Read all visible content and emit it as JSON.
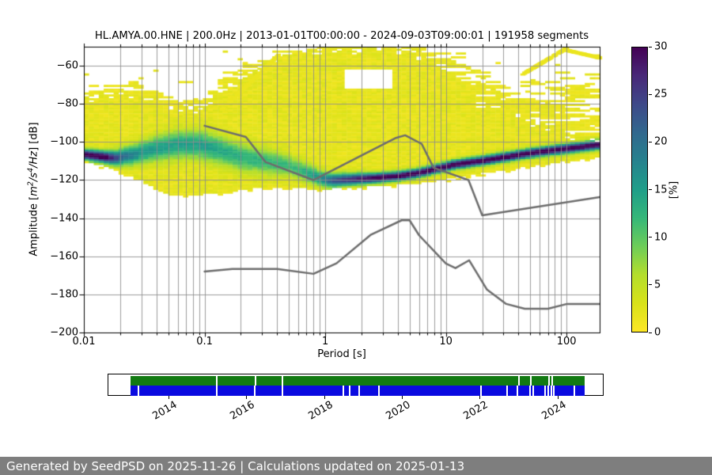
{
  "title": "HL.AMYA.00.HNE | 200.0Hz | 2013-01-01T00:00:00 - 2024-09-03T09:00:01 | 191958 segments",
  "footer": {
    "text": "Generated by SeedPSD on 2025-11-26 | Calculations updated on 2025-01-13",
    "bg": "#7e7e7e",
    "fg": "#ffffff"
  },
  "main_plot": {
    "xlabel": "Period [s]",
    "ylabel": {
      "prefix": "Amplitude [",
      "math_m": "m",
      "exp_m": "2",
      "math_s": "/s",
      "exp_s": "4",
      "math_hz": "/Hz",
      "suffix": "] [dB]"
    },
    "x_ticks": [
      {
        "p": 0.01,
        "label": "0.01"
      },
      {
        "p": 0.1,
        "label": "0.1"
      },
      {
        "p": 1,
        "label": "1"
      },
      {
        "p": 10,
        "label": "10"
      },
      {
        "p": 100,
        "label": "100"
      }
    ],
    "y_ticks": [
      {
        "db": -60,
        "label": "−60"
      },
      {
        "db": -80,
        "label": "−80"
      },
      {
        "db": -100,
        "label": "−100"
      },
      {
        "db": -120,
        "label": "−120"
      },
      {
        "db": -140,
        "label": "−140"
      },
      {
        "db": -160,
        "label": "−160"
      },
      {
        "db": -180,
        "label": "−180"
      },
      {
        "db": -200,
        "label": "−200"
      }
    ],
    "grid_color": "rgba(140,140,140,0.85)"
  },
  "colorbar": {
    "label": "[%]",
    "min": 0,
    "max": 30,
    "ticks": [
      {
        "v": 0,
        "label": "0"
      },
      {
        "v": 5,
        "label": "5"
      },
      {
        "v": 10,
        "label": "10"
      },
      {
        "v": 15,
        "label": "15"
      },
      {
        "v": 20,
        "label": "20"
      },
      {
        "v": 25,
        "label": "25"
      },
      {
        "v": 30,
        "label": "30"
      }
    ],
    "colormap": "viridis_r",
    "stops": [
      [
        0,
        "#fde725"
      ],
      [
        0.1,
        "#d8e219"
      ],
      [
        0.2,
        "#b4de2c"
      ],
      [
        0.3,
        "#6dcd59"
      ],
      [
        0.4,
        "#35b779"
      ],
      [
        0.5,
        "#1f9e89"
      ],
      [
        0.6,
        "#26828e"
      ],
      [
        0.7,
        "#31688e"
      ],
      [
        0.8,
        "#3e4989"
      ],
      [
        0.9,
        "#482878"
      ],
      [
        1,
        "#440154"
      ]
    ]
  },
  "chart_data": {
    "type": "heatmap",
    "title": "HL.AMYA.00.HNE | 200.0Hz | 2013-01-01T00:00:00 - 2024-09-03T09:00:01 | 191958 segments",
    "xlabel": "Period [s]",
    "ylabel": "Amplitude [m^2/s^4/Hz] [dB]",
    "x_scale": "log",
    "x_range_s": [
      0.01,
      188
    ],
    "y_range_db": [
      -200,
      -50
    ],
    "colorbar_label": "[%]",
    "colorbar_range": [
      0,
      30
    ],
    "mode_ridge_period_db": [
      [
        0.01,
        -106.5
      ],
      [
        0.013,
        -107.5
      ],
      [
        0.018,
        -108.5
      ],
      [
        0.025,
        -107
      ],
      [
        0.04,
        -103.5
      ],
      [
        0.06,
        -101.5
      ],
      [
        0.09,
        -101.5
      ],
      [
        0.13,
        -104
      ],
      [
        0.2,
        -108
      ],
      [
        0.3,
        -110
      ],
      [
        0.5,
        -112.5
      ],
      [
        0.7,
        -116
      ],
      [
        0.9,
        -119
      ],
      [
        1.1,
        -120.3
      ],
      [
        1.5,
        -119.8
      ],
      [
        2.5,
        -119
      ],
      [
        4,
        -118
      ],
      [
        6,
        -116.3
      ],
      [
        11.6,
        -112
      ],
      [
        22,
        -109.5
      ],
      [
        52,
        -105.7
      ],
      [
        100,
        -103.5
      ],
      [
        143,
        -102.4
      ],
      [
        188,
        -101.3
      ]
    ],
    "mode_peak_percent": [
      [
        0.01,
        30
      ],
      [
        0.015,
        30
      ],
      [
        0.02,
        20
      ],
      [
        0.03,
        14
      ],
      [
        0.05,
        13
      ],
      [
        0.1,
        13
      ],
      [
        0.2,
        11
      ],
      [
        0.4,
        10
      ],
      [
        0.6,
        10
      ],
      [
        0.9,
        15
      ],
      [
        1.2,
        22
      ],
      [
        2,
        27
      ],
      [
        3,
        30
      ],
      [
        188,
        30
      ]
    ],
    "mode_sigma_db": [
      [
        0.01,
        1.8
      ],
      [
        0.015,
        2.1
      ],
      [
        0.025,
        3.5
      ],
      [
        0.05,
        4.8
      ],
      [
        0.1,
        5.0
      ],
      [
        0.2,
        5.0
      ],
      [
        0.4,
        4.2
      ],
      [
        0.7,
        3.2
      ],
      [
        1,
        2.6
      ],
      [
        1.5,
        2.2
      ],
      [
        2.5,
        1.8
      ],
      [
        4,
        1.6
      ],
      [
        188,
        1.7
      ]
    ],
    "occupancy_top_db": [
      [
        0.01,
        -76
      ],
      [
        0.02,
        -73.5
      ],
      [
        0.04,
        -78
      ],
      [
        0.06,
        -82
      ],
      [
        0.1,
        -80
      ],
      [
        0.15,
        -70
      ],
      [
        0.25,
        -62
      ],
      [
        0.4,
        -55
      ],
      [
        0.7,
        -51
      ],
      [
        1,
        -50.5
      ],
      [
        5,
        -50.5
      ],
      [
        8,
        -56
      ],
      [
        12,
        -64
      ],
      [
        18,
        -79
      ],
      [
        30,
        -83
      ],
      [
        60,
        -88
      ],
      [
        100,
        -94
      ],
      [
        150,
        -96
      ],
      [
        188,
        -97
      ]
    ],
    "speckle_top_db": [
      [
        0.01,
        -63
      ],
      [
        0.03,
        -66
      ],
      [
        0.05,
        -74
      ],
      [
        0.1,
        -72
      ],
      [
        0.15,
        -62
      ],
      [
        0.3,
        -52
      ],
      [
        0.5,
        -50.5
      ],
      [
        10,
        -50.5
      ],
      [
        20,
        -51
      ],
      [
        40,
        -62
      ],
      [
        70,
        -54
      ],
      [
        100,
        -51
      ],
      [
        188,
        -50.5
      ]
    ],
    "occupancy_bottom_db": [
      [
        0.01,
        -110
      ],
      [
        0.02,
        -115
      ],
      [
        0.03,
        -120.5
      ],
      [
        0.05,
        -128
      ],
      [
        0.1,
        -127.5
      ],
      [
        0.16,
        -126
      ],
      [
        0.25,
        -124.5
      ],
      [
        0.5,
        -123.5
      ],
      [
        0.8,
        -125
      ],
      [
        1.5,
        -124
      ],
      [
        3,
        -123
      ],
      [
        6,
        -121.5
      ],
      [
        10,
        -119.5
      ],
      [
        20,
        -116.5
      ],
      [
        40,
        -113.5
      ],
      [
        80,
        -111
      ],
      [
        150,
        -108.5
      ],
      [
        188,
        -107.5
      ]
    ],
    "white_patches": [
      {
        "period": [
          1.45,
          3.6
        ],
        "db": [
          -62,
          -72
        ]
      }
    ],
    "diag_streaks": [
      [
        [
          0.14,
          -83
        ],
        [
          0.42,
          -54
        ]
      ],
      [
        [
          45,
          -64
        ],
        [
          100,
          -51
        ]
      ],
      [
        [
          100,
          -52
        ],
        [
          188,
          -56
        ]
      ]
    ],
    "noise_models": {
      "color": "#6d6d6d",
      "nhnm_period_db": [
        [
          0.1,
          -91.5
        ],
        [
          0.22,
          -97.4
        ],
        [
          0.32,
          -110.5
        ],
        [
          0.8,
          -120.0
        ],
        [
          3.8,
          -98.0
        ],
        [
          4.6,
          -96.5
        ],
        [
          6.3,
          -101.0
        ],
        [
          7.9,
          -113.5
        ],
        [
          15.4,
          -120.0
        ],
        [
          20.0,
          -138.5
        ],
        [
          188,
          -128.9
        ]
      ],
      "nlnm_period_db": [
        [
          0.1,
          -168.0
        ],
        [
          0.17,
          -166.7
        ],
        [
          0.4,
          -166.7
        ],
        [
          0.8,
          -169.2
        ],
        [
          1.24,
          -163.7
        ],
        [
          2.4,
          -148.6
        ],
        [
          4.3,
          -141.1
        ],
        [
          5.0,
          -141.1
        ],
        [
          6.0,
          -149.0
        ],
        [
          10.0,
          -163.8
        ],
        [
          12.0,
          -166.2
        ],
        [
          15.6,
          -162.1
        ],
        [
          21.9,
          -177.5
        ],
        [
          31.6,
          -185.0
        ],
        [
          45.0,
          -187.5
        ],
        [
          70.0,
          -187.5
        ],
        [
          101.0,
          -185.0
        ],
        [
          188,
          -185.0
        ]
      ]
    }
  },
  "availability": {
    "box_year_range": [
      2012.44,
      2025.18
    ],
    "data_year_range": [
      2013.0,
      2024.67
    ],
    "year_ticks": [
      "2014",
      "2016",
      "2018",
      "2020",
      "2022",
      "2024"
    ],
    "rows": [
      {
        "name": "segments-green",
        "color": "#127a12",
        "gap_years": [
          2015.2,
          2016.19,
          2016.9,
          2022.97,
          2023.28,
          2023.74,
          2023.82
        ]
      },
      {
        "name": "coverage-blue",
        "color": "#0a0ae0",
        "gap_years": [
          2013.19,
          2015.2,
          2016.17,
          2016.88,
          2018.45,
          2018.61,
          2018.87,
          2019.36,
          2021.99,
          2022.67,
          2022.93,
          2023.24,
          2023.34,
          2023.64,
          2023.72,
          2023.79,
          2023.85,
          2024.39
        ]
      }
    ]
  }
}
